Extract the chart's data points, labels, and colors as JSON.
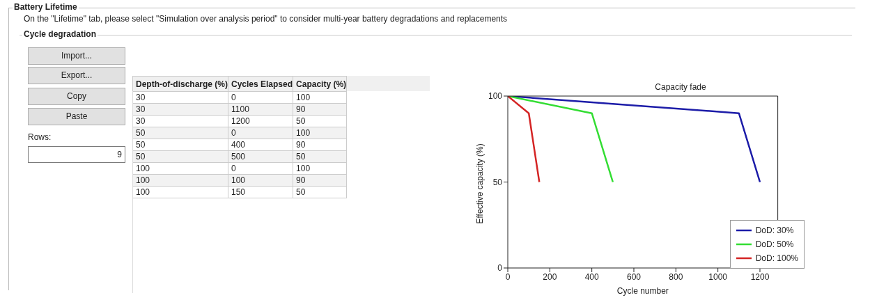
{
  "chart_data": {
    "type": "line",
    "title": "Capacity fade",
    "xlabel": "Cycle number",
    "ylabel": "Effective capacity (%)",
    "xlim": [
      0,
      1285
    ],
    "xticks": [
      0,
      200,
      400,
      600,
      800,
      1000,
      1200
    ],
    "ylim": [
      0,
      100
    ],
    "yticks": [
      0,
      50,
      100
    ],
    "grid": false,
    "legend": "bottom right",
    "marker": "none",
    "line_style": "solid",
    "series": [
      {
        "name": "DoD: 30%",
        "color": "#1c1ca8",
        "x": [
          0,
          1100,
          1200
        ],
        "values": [
          100,
          90,
          50
        ]
      },
      {
        "name": "DoD: 50%",
        "color": "#33dd33",
        "x": [
          0,
          400,
          500
        ],
        "values": [
          100,
          90,
          50
        ]
      },
      {
        "name": "DoD: 100%",
        "color": "#d42424",
        "x": [
          0,
          100,
          150
        ],
        "values": [
          100,
          90,
          50
        ]
      }
    ],
    "annotations": [
      "Battery Lifetime",
      "On the \"Lifetime\" tab, please select \"Simulation over analysis period\" to consider multi-year battery degradations and replacements",
      "Cycle degradation",
      "Import...",
      "Export...",
      "Copy",
      "Paste",
      "Rows:",
      "9",
      "Depth-of-discharge (%)",
      "Cycles Elapsed",
      "Capacity (%)",
      "30",
      "0",
      "100",
      "30",
      "1100",
      "90",
      "30",
      "1200",
      "50",
      "50",
      "0",
      "100",
      "50",
      "400",
      "90",
      "50",
      "500",
      "50",
      "100",
      "0",
      "100",
      "100",
      "100",
      "90",
      "100",
      "150",
      "50"
    ]
  }
}
